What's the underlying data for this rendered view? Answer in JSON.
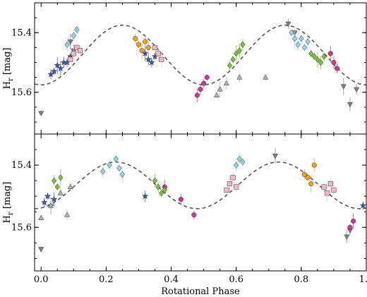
{
  "chart_data": [
    {
      "type": "scatter",
      "panel": "top",
      "ylabel": "H_r [mag]",
      "ylabel_main": "H",
      "ylabel_sub": "r",
      "ylabel_unit": " [mag]",
      "ylim": [
        15.74,
        15.3
      ],
      "xlim": [
        -0.02,
        1.0
      ],
      "yticks": [
        "15.4",
        "15.6"
      ],
      "ytick_values": [
        15.4,
        15.6
      ],
      "model_curve": {
        "mean": 15.475,
        "amplitude": 0.1,
        "min_phase": 0.0
      },
      "series": [
        {
          "marker": "triangle-down",
          "color": "#808080",
          "points": [
            [
              0.0,
              15.67
            ],
            [
              0.09,
              15.43
            ],
            [
              0.1,
              15.46
            ],
            [
              0.76,
              15.37
            ],
            [
              0.78,
              15.4
            ],
            [
              0.93,
              15.58
            ],
            [
              0.95,
              15.64
            ],
            [
              0.97,
              15.59
            ]
          ]
        },
        {
          "marker": "star",
          "color": "#3b5ba8",
          "points": [
            [
              0.03,
              15.54
            ],
            [
              0.04,
              15.53
            ],
            [
              0.05,
              15.51
            ],
            [
              0.06,
              15.52
            ],
            [
              0.07,
              15.5
            ],
            [
              0.08,
              15.5
            ],
            [
              0.09,
              15.48
            ],
            [
              0.32,
              15.47
            ],
            [
              0.33,
              15.49
            ],
            [
              0.34,
              15.5
            ],
            [
              0.35,
              15.48
            ]
          ]
        },
        {
          "marker": "diamond",
          "color": "#8fd3e8",
          "points": [
            [
              0.08,
              15.44
            ],
            [
              0.1,
              15.41
            ],
            [
              0.11,
              15.39
            ],
            [
              0.77,
              15.4
            ],
            [
              0.78,
              15.42
            ],
            [
              0.79,
              15.44
            ],
            [
              0.8,
              15.42
            ],
            [
              0.81,
              15.45
            ],
            [
              0.82,
              15.43
            ]
          ]
        },
        {
          "marker": "square",
          "color": "#f2b9c6",
          "points": [
            [
              0.09,
              15.49
            ],
            [
              0.1,
              15.47
            ],
            [
              0.11,
              15.45
            ],
            [
              0.12,
              15.46
            ],
            [
              0.35,
              15.45
            ],
            [
              0.36,
              15.47
            ],
            [
              0.37,
              15.49
            ]
          ]
        },
        {
          "marker": "circle",
          "color": "#f0a01e",
          "points": [
            [
              0.29,
              15.42
            ],
            [
              0.3,
              15.44
            ],
            [
              0.31,
              15.46
            ],
            [
              0.32,
              15.43
            ],
            [
              0.33,
              15.45
            ]
          ]
        },
        {
          "marker": "circle",
          "color": "#c43b8f",
          "points": [
            [
              0.48,
              15.61
            ],
            [
              0.49,
              15.59
            ],
            [
              0.5,
              15.57
            ],
            [
              0.51,
              15.55
            ],
            [
              0.89,
              15.47
            ],
            [
              0.9,
              15.5
            ],
            [
              0.91,
              15.52
            ]
          ]
        },
        {
          "marker": "triangle-up",
          "color": "#b0b0b0",
          "points": [
            [
              0.54,
              15.61
            ],
            [
              0.55,
              15.59
            ],
            [
              0.57,
              15.57
            ],
            [
              0.61,
              15.55
            ],
            [
              0.69,
              15.55
            ]
          ]
        },
        {
          "marker": "diamond",
          "color": "#7cbf3c",
          "points": [
            [
              0.58,
              15.51
            ],
            [
              0.59,
              15.49
            ],
            [
              0.6,
              15.47
            ],
            [
              0.61,
              15.46
            ],
            [
              0.62,
              15.44
            ],
            [
              0.83,
              15.47
            ],
            [
              0.84,
              15.48
            ],
            [
              0.85,
              15.49
            ],
            [
              0.86,
              15.5
            ],
            [
              0.87,
              15.48
            ]
          ]
        }
      ]
    },
    {
      "type": "scatter",
      "panel": "bottom",
      "xlabel": "Rotational Phase",
      "ylabel": "H_r [mag]",
      "ylabel_main": "H",
      "ylabel_sub": "r",
      "ylabel_unit": " [mag]",
      "ylim": [
        15.74,
        15.3
      ],
      "xlim": [
        -0.02,
        1.0
      ],
      "xticks": [
        "0.0",
        "0.2",
        "0.4",
        "0.6",
        "0.8",
        "1.0"
      ],
      "xtick_values": [
        0.0,
        0.2,
        0.4,
        0.6,
        0.8,
        1.0
      ],
      "yticks": [
        "15.4",
        "15.6"
      ],
      "ytick_values": [
        15.4,
        15.6
      ],
      "model_curve": {
        "mean": 15.465,
        "amplitude": 0.075,
        "min_phase": -0.02
      },
      "series": [
        {
          "marker": "triangle-down",
          "color": "#808080",
          "points": [
            [
              0.0,
              15.67
            ],
            [
              0.72,
              15.37
            ],
            [
              0.94,
              15.63
            ],
            [
              0.95,
              15.61
            ]
          ]
        },
        {
          "marker": "star",
          "color": "#3b5ba8",
          "points": [
            [
              0.01,
              15.52
            ],
            [
              0.02,
              15.5
            ],
            [
              0.03,
              15.53
            ],
            [
              0.04,
              15.51
            ],
            [
              0.32,
              15.5
            ],
            [
              0.99,
              15.53
            ]
          ]
        },
        {
          "marker": "diamond",
          "color": "#8fd3e8",
          "points": [
            [
              0.19,
              15.42
            ],
            [
              0.21,
              15.4
            ],
            [
              0.23,
              15.38
            ],
            [
              0.24,
              15.41
            ],
            [
              0.25,
              15.43
            ],
            [
              0.6,
              15.4
            ],
            [
              0.61,
              15.38
            ],
            [
              0.62,
              15.39
            ]
          ]
        },
        {
          "marker": "square",
          "color": "#f2b9c6",
          "points": [
            [
              0.57,
              15.48
            ],
            [
              0.58,
              15.46
            ],
            [
              0.59,
              15.44
            ],
            [
              0.6,
              15.47
            ],
            [
              0.87,
              15.47
            ],
            [
              0.88,
              15.49
            ],
            [
              0.89,
              15.46
            ],
            [
              0.9,
              15.48
            ]
          ]
        },
        {
          "marker": "circle",
          "color": "#f0a01e",
          "points": [
            [
              0.81,
              15.43
            ],
            [
              0.82,
              15.44
            ],
            [
              0.83,
              15.46
            ],
            [
              0.84,
              15.4
            ]
          ]
        },
        {
          "marker": "circle",
          "color": "#c43b8f",
          "points": [
            [
              0.38,
              15.47
            ],
            [
              0.43,
              15.51
            ],
            [
              0.47,
              15.56
            ],
            [
              0.95,
              15.6
            ],
            [
              0.96,
              15.58
            ]
          ]
        },
        {
          "marker": "triangle-up",
          "color": "#b0b0b0",
          "points": [
            [
              0.0,
              15.57
            ],
            [
              0.03,
              15.53
            ],
            [
              0.06,
              15.49
            ],
            [
              0.08,
              15.56
            ],
            [
              0.09,
              15.47
            ]
          ]
        },
        {
          "marker": "diamond",
          "color": "#7cbf3c",
          "points": [
            [
              0.04,
              15.45
            ],
            [
              0.05,
              15.47
            ],
            [
              0.06,
              15.44
            ],
            [
              0.35,
              15.45
            ],
            [
              0.36,
              15.47
            ],
            [
              0.37,
              15.49
            ],
            [
              0.38,
              15.48
            ]
          ]
        }
      ]
    }
  ]
}
